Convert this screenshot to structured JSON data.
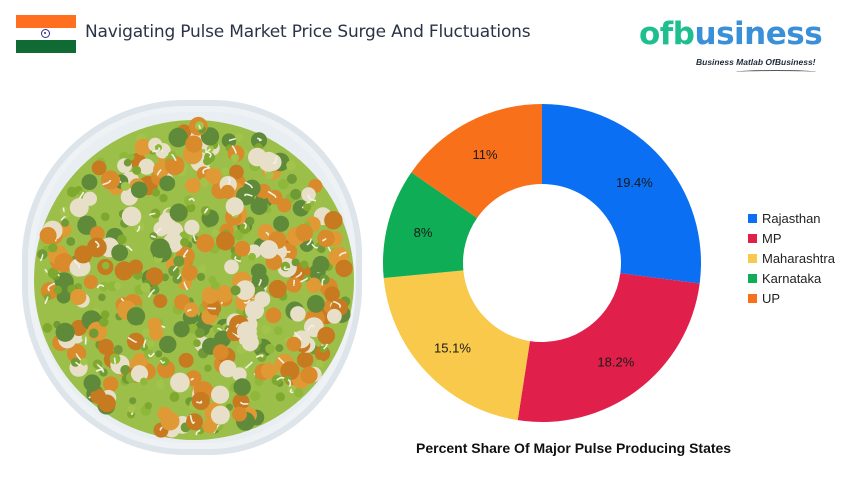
{
  "header": {
    "flag_icon": "india-flag-icon",
    "title": "Navigating Pulse Market Price Surge And Fluctuations"
  },
  "logo": {
    "part1": "of",
    "part2": "b",
    "part3": "usiness",
    "tagline": "Business Matlab OfBusiness!"
  },
  "image": {
    "description": "bowl of mixed sprouted pulses"
  },
  "chart_data": {
    "type": "pie",
    "subtype": "donut",
    "title": "Percent Share Of Major Pulse Producing States",
    "categories": [
      "Rajasthan",
      "MP",
      "Maharashtra",
      "Karnataka",
      "UP"
    ],
    "values": [
      19.4,
      18.2,
      15.1,
      8,
      11
    ],
    "labels": [
      "19.4%",
      "18.2%",
      "15.1%",
      "8%",
      "11%"
    ],
    "colors": [
      "#0a6ff2",
      "#e0204a",
      "#f8c94a",
      "#0fad55",
      "#f8701a"
    ],
    "legend_position": "right",
    "start_angle": 0,
    "direction": "clockwise"
  }
}
